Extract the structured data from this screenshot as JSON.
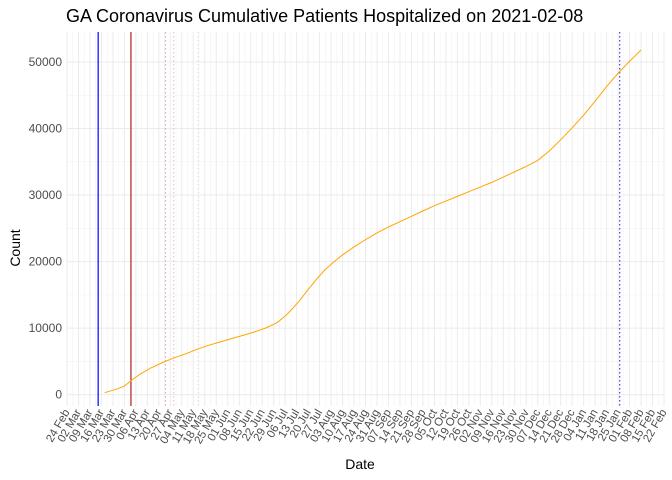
{
  "chart_data": {
    "type": "line",
    "title": "GA Coronavirus Cumulative Patients Hospitalized on 2021-02-08",
    "xlabel": "Date",
    "ylabel": "Count",
    "x_range": [
      "2020-02-24",
      "2021-02-22"
    ],
    "ylim": [
      -1700,
      54500
    ],
    "y_ticks": [
      0,
      10000,
      20000,
      30000,
      40000,
      50000
    ],
    "y_tick_labels": [
      "0",
      "10000",
      "20000",
      "30000",
      "40000",
      "50000"
    ],
    "x_ticks": [
      "2020-02-24",
      "2020-03-02",
      "2020-03-09",
      "2020-03-16",
      "2020-03-23",
      "2020-03-30",
      "2020-04-06",
      "2020-04-13",
      "2020-04-20",
      "2020-04-27",
      "2020-05-04",
      "2020-05-11",
      "2020-05-18",
      "2020-05-25",
      "2020-06-01",
      "2020-06-08",
      "2020-06-15",
      "2020-06-22",
      "2020-06-29",
      "2020-07-06",
      "2020-07-13",
      "2020-07-20",
      "2020-07-27",
      "2020-08-03",
      "2020-08-10",
      "2020-08-17",
      "2020-08-24",
      "2020-08-31",
      "2020-09-07",
      "2020-09-14",
      "2020-09-21",
      "2020-09-28",
      "2020-10-05",
      "2020-10-12",
      "2020-10-19",
      "2020-10-26",
      "2020-11-02",
      "2020-11-09",
      "2020-11-16",
      "2020-11-23",
      "2020-11-30",
      "2020-12-07",
      "2020-12-14",
      "2020-12-21",
      "2020-12-28",
      "2021-01-04",
      "2021-01-11",
      "2021-01-18",
      "2021-01-25",
      "2021-02-01",
      "2021-02-08",
      "2021-02-15",
      "2021-02-22"
    ],
    "x_tick_labels": [
      "24 Feb",
      "02 Mar",
      "09 Mar",
      "16 Mar",
      "23 Mar",
      "30 Mar",
      "06 Apr",
      "13 Apr",
      "20 Apr",
      "27 Apr",
      "04 May",
      "11 May",
      "18 May",
      "25 May",
      "01 Jun",
      "08 Jun",
      "15 Jun",
      "22 Jun",
      "29 Jun",
      "06 Jul",
      "13 Jul",
      "20 Jul",
      "27 Jul",
      "03 Aug",
      "10 Aug",
      "17 Aug",
      "24 Aug",
      "31 Aug",
      "07 Sep",
      "14 Sep",
      "21 Sep",
      "28 Sep",
      "05 Oct",
      "12 Oct",
      "19 Oct",
      "26 Oct",
      "02 Nov",
      "09 Nov",
      "16 Nov",
      "23 Nov",
      "30 Nov",
      "07 Dec",
      "14 Dec",
      "21 Dec",
      "28 Dec",
      "04 Jan",
      "11 Jan",
      "18 Jan",
      "25 Jan",
      "01 Feb",
      "08 Feb",
      "15 Feb",
      "22 Feb"
    ],
    "series": [
      {
        "name": "Cumulative Patients Hospitalized",
        "color": "#FFA500",
        "points": [
          [
            "2020-03-18",
            300
          ],
          [
            "2020-03-22",
            600
          ],
          [
            "2020-03-26",
            900
          ],
          [
            "2020-03-30",
            1300
          ],
          [
            "2020-04-03",
            2100
          ],
          [
            "2020-04-08",
            3000
          ],
          [
            "2020-04-15",
            4000
          ],
          [
            "2020-04-22",
            4800
          ],
          [
            "2020-04-29",
            5500
          ],
          [
            "2020-05-06",
            6100
          ],
          [
            "2020-05-13",
            6800
          ],
          [
            "2020-05-20",
            7400
          ],
          [
            "2020-05-27",
            7900
          ],
          [
            "2020-06-03",
            8400
          ],
          [
            "2020-06-10",
            8900
          ],
          [
            "2020-06-17",
            9400
          ],
          [
            "2020-06-24",
            10000
          ],
          [
            "2020-07-01",
            10800
          ],
          [
            "2020-07-06",
            11800
          ],
          [
            "2020-07-10",
            12800
          ],
          [
            "2020-07-15",
            14200
          ],
          [
            "2020-07-20",
            15800
          ],
          [
            "2020-07-25",
            17300
          ],
          [
            "2020-07-30",
            18700
          ],
          [
            "2020-08-04",
            19800
          ],
          [
            "2020-08-10",
            21000
          ],
          [
            "2020-08-17",
            22200
          ],
          [
            "2020-08-24",
            23300
          ],
          [
            "2020-08-31",
            24300
          ],
          [
            "2020-09-07",
            25200
          ],
          [
            "2020-09-14",
            26000
          ],
          [
            "2020-09-21",
            26800
          ],
          [
            "2020-09-28",
            27600
          ],
          [
            "2020-10-05",
            28400
          ],
          [
            "2020-10-12",
            29100
          ],
          [
            "2020-10-19",
            29800
          ],
          [
            "2020-10-26",
            30500
          ],
          [
            "2020-11-02",
            31200
          ],
          [
            "2020-11-09",
            31900
          ],
          [
            "2020-11-16",
            32700
          ],
          [
            "2020-11-23",
            33500
          ],
          [
            "2020-11-30",
            34300
          ],
          [
            "2020-12-07",
            35200
          ],
          [
            "2020-12-14",
            36600
          ],
          [
            "2020-12-21",
            38300
          ],
          [
            "2020-12-28",
            40100
          ],
          [
            "2021-01-04",
            42000
          ],
          [
            "2021-01-11",
            44100
          ],
          [
            "2021-01-18",
            46300
          ],
          [
            "2021-01-25",
            48300
          ],
          [
            "2021-02-01",
            50100
          ],
          [
            "2021-02-08",
            51800
          ]
        ]
      }
    ],
    "reference_lines": [
      {
        "date": "2020-03-14",
        "color": "#0000FF",
        "style": "solid"
      },
      {
        "date": "2020-04-03",
        "color": "#B22222",
        "style": "solid"
      },
      {
        "date": "2020-04-24",
        "color": "#E8A0A0",
        "style": "dotted"
      },
      {
        "date": "2020-04-29",
        "color": "#F0C0C0",
        "style": "dotted"
      },
      {
        "date": "2020-05-14",
        "color": "#F4D0D0",
        "style": "dotted"
      },
      {
        "date": "2021-01-26",
        "color": "#3333CC",
        "style": "dotted"
      }
    ],
    "grid": true,
    "legend": "none"
  }
}
